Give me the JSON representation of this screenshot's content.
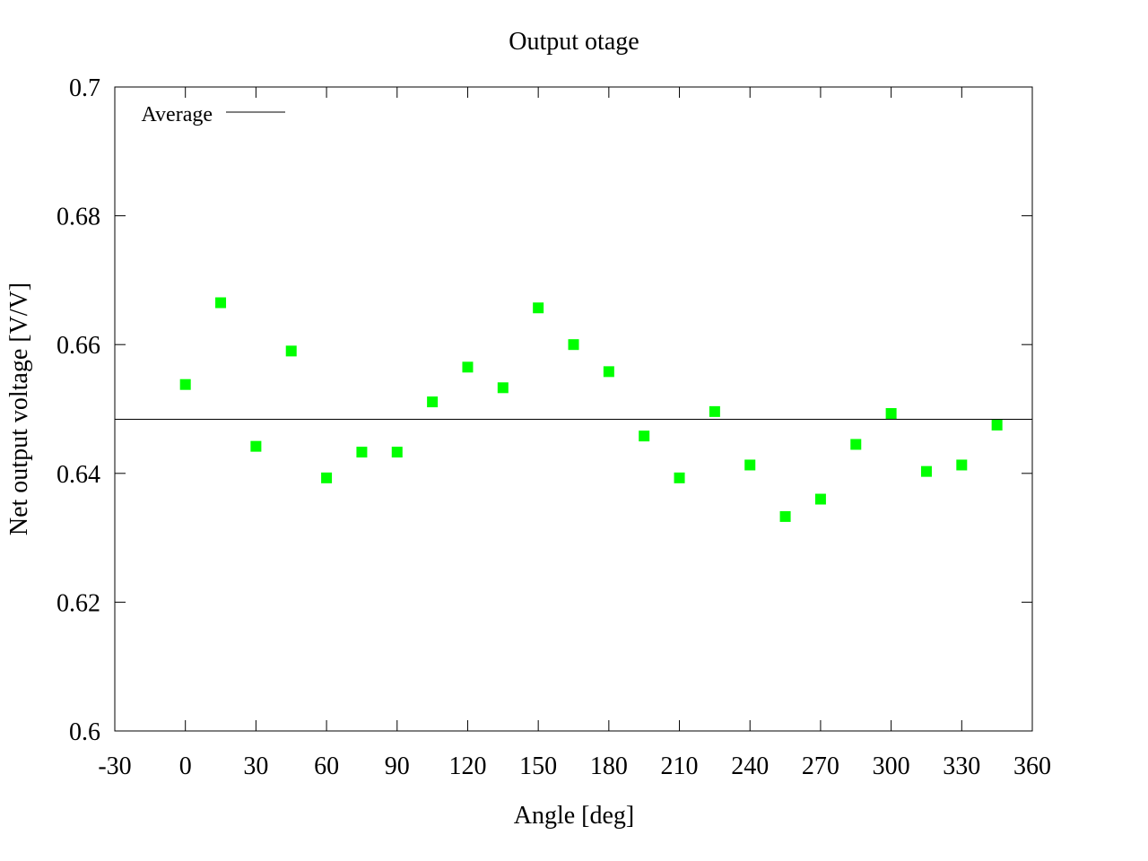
{
  "chart_data": {
    "type": "scatter",
    "title": "Output otage",
    "xlabel": "Angle [deg]",
    "ylabel": "Net output voltage [V/V]",
    "xlim": [
      -30,
      360
    ],
    "ylim": [
      0.6,
      0.7
    ],
    "xticks": [
      -30,
      0,
      30,
      60,
      90,
      120,
      150,
      180,
      210,
      240,
      270,
      300,
      330,
      360
    ],
    "xtick_labels": [
      "-30",
      "0",
      "30",
      "60",
      "90",
      "120",
      "150",
      "180",
      "210",
      "240",
      "270",
      "300",
      "330",
      "360"
    ],
    "yticks": [
      0.6,
      0.62,
      0.64,
      0.66,
      0.68,
      0.7
    ],
    "ytick_labels": [
      "0.6",
      "0.62",
      "0.64",
      "0.66",
      "0.68",
      "0.7"
    ],
    "grid": false,
    "legend_position": "top-left",
    "series": [
      {
        "marker": "square",
        "color": "#00ff00",
        "x": [
          0,
          15,
          30,
          45,
          60,
          75,
          90,
          105,
          120,
          135,
          150,
          165,
          180,
          195,
          210,
          225,
          240,
          255,
          270,
          285,
          300,
          315,
          330,
          345
        ],
        "y": [
          0.6538,
          0.6665,
          0.6442,
          0.659,
          0.6393,
          0.6433,
          0.6433,
          0.6511,
          0.6565,
          0.6533,
          0.6657,
          0.66,
          0.6558,
          0.6458,
          0.6393,
          0.6496,
          0.6413,
          0.6333,
          0.636,
          0.6445,
          0.6493,
          0.6403,
          0.6413,
          0.6475
        ]
      },
      {
        "name": "Average",
        "type": "line",
        "color": "#000000",
        "y_constant": 0.6484
      }
    ]
  }
}
